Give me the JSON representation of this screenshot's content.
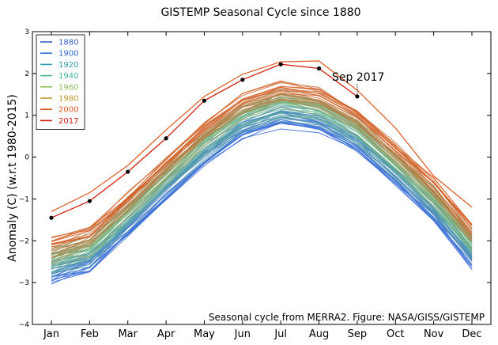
{
  "chart_data": {
    "type": "line",
    "title": "GISTEMP Seasonal Cycle since 1880",
    "xlabel": "",
    "ylabel": "Anomaly (C) (w.r.t 1980-2015)",
    "categories": [
      "Jan",
      "Feb",
      "Mar",
      "Apr",
      "May",
      "Jun",
      "Jul",
      "Aug",
      "Sep",
      "Oct",
      "Nov",
      "Dec"
    ],
    "ylim": [
      -4,
      3
    ],
    "yticks": [
      "3",
      "2",
      "1",
      "0",
      "−1",
      "−2",
      "−3",
      "−4"
    ],
    "grid": false,
    "legend_position": "top-left",
    "legend": [
      {
        "label": "1880",
        "color": "#3a5fcd"
      },
      {
        "label": "1900",
        "color": "#2b6fd6"
      },
      {
        "label": "1920",
        "color": "#2a9fb5"
      },
      {
        "label": "1940",
        "color": "#43b89a"
      },
      {
        "label": "1960",
        "color": "#8fbf5a"
      },
      {
        "label": "1980",
        "color": "#c89a2e"
      },
      {
        "label": "2000",
        "color": "#e0561c"
      },
      {
        "label": "2017",
        "color": "#d11a0a"
      }
    ],
    "reference_shape": [
      -2.55,
      -2.3,
      -1.45,
      -0.6,
      0.25,
      0.9,
      1.2,
      1.05,
      0.55,
      -0.25,
      -1.1,
      -2.2
    ],
    "warmest_recent_year": [
      -1.3,
      -0.85,
      -0.2,
      0.65,
      1.45,
      1.98,
      2.28,
      2.3,
      1.6,
      0.7,
      -0.45,
      -1.2
    ],
    "series_2017": {
      "name": "2017",
      "months": [
        "Jan",
        "Feb",
        "Mar",
        "Apr",
        "May",
        "Jun",
        "Jul",
        "Aug",
        "Sep"
      ],
      "values": [
        -1.45,
        -1.05,
        -0.35,
        0.45,
        1.35,
        1.85,
        2.22,
        2.12,
        1.45
      ]
    },
    "annotation": {
      "text": "Sep 2017",
      "month": "Sep",
      "value": 1.45
    },
    "credit": "Seasonal cycle from MERRA2. Figure: NASA/GISS/GISTEMP",
    "colors": {
      "early": "#2b5ce6",
      "mid": "#6cc08a",
      "late": "#e0561c",
      "marker": "#000000"
    }
  }
}
